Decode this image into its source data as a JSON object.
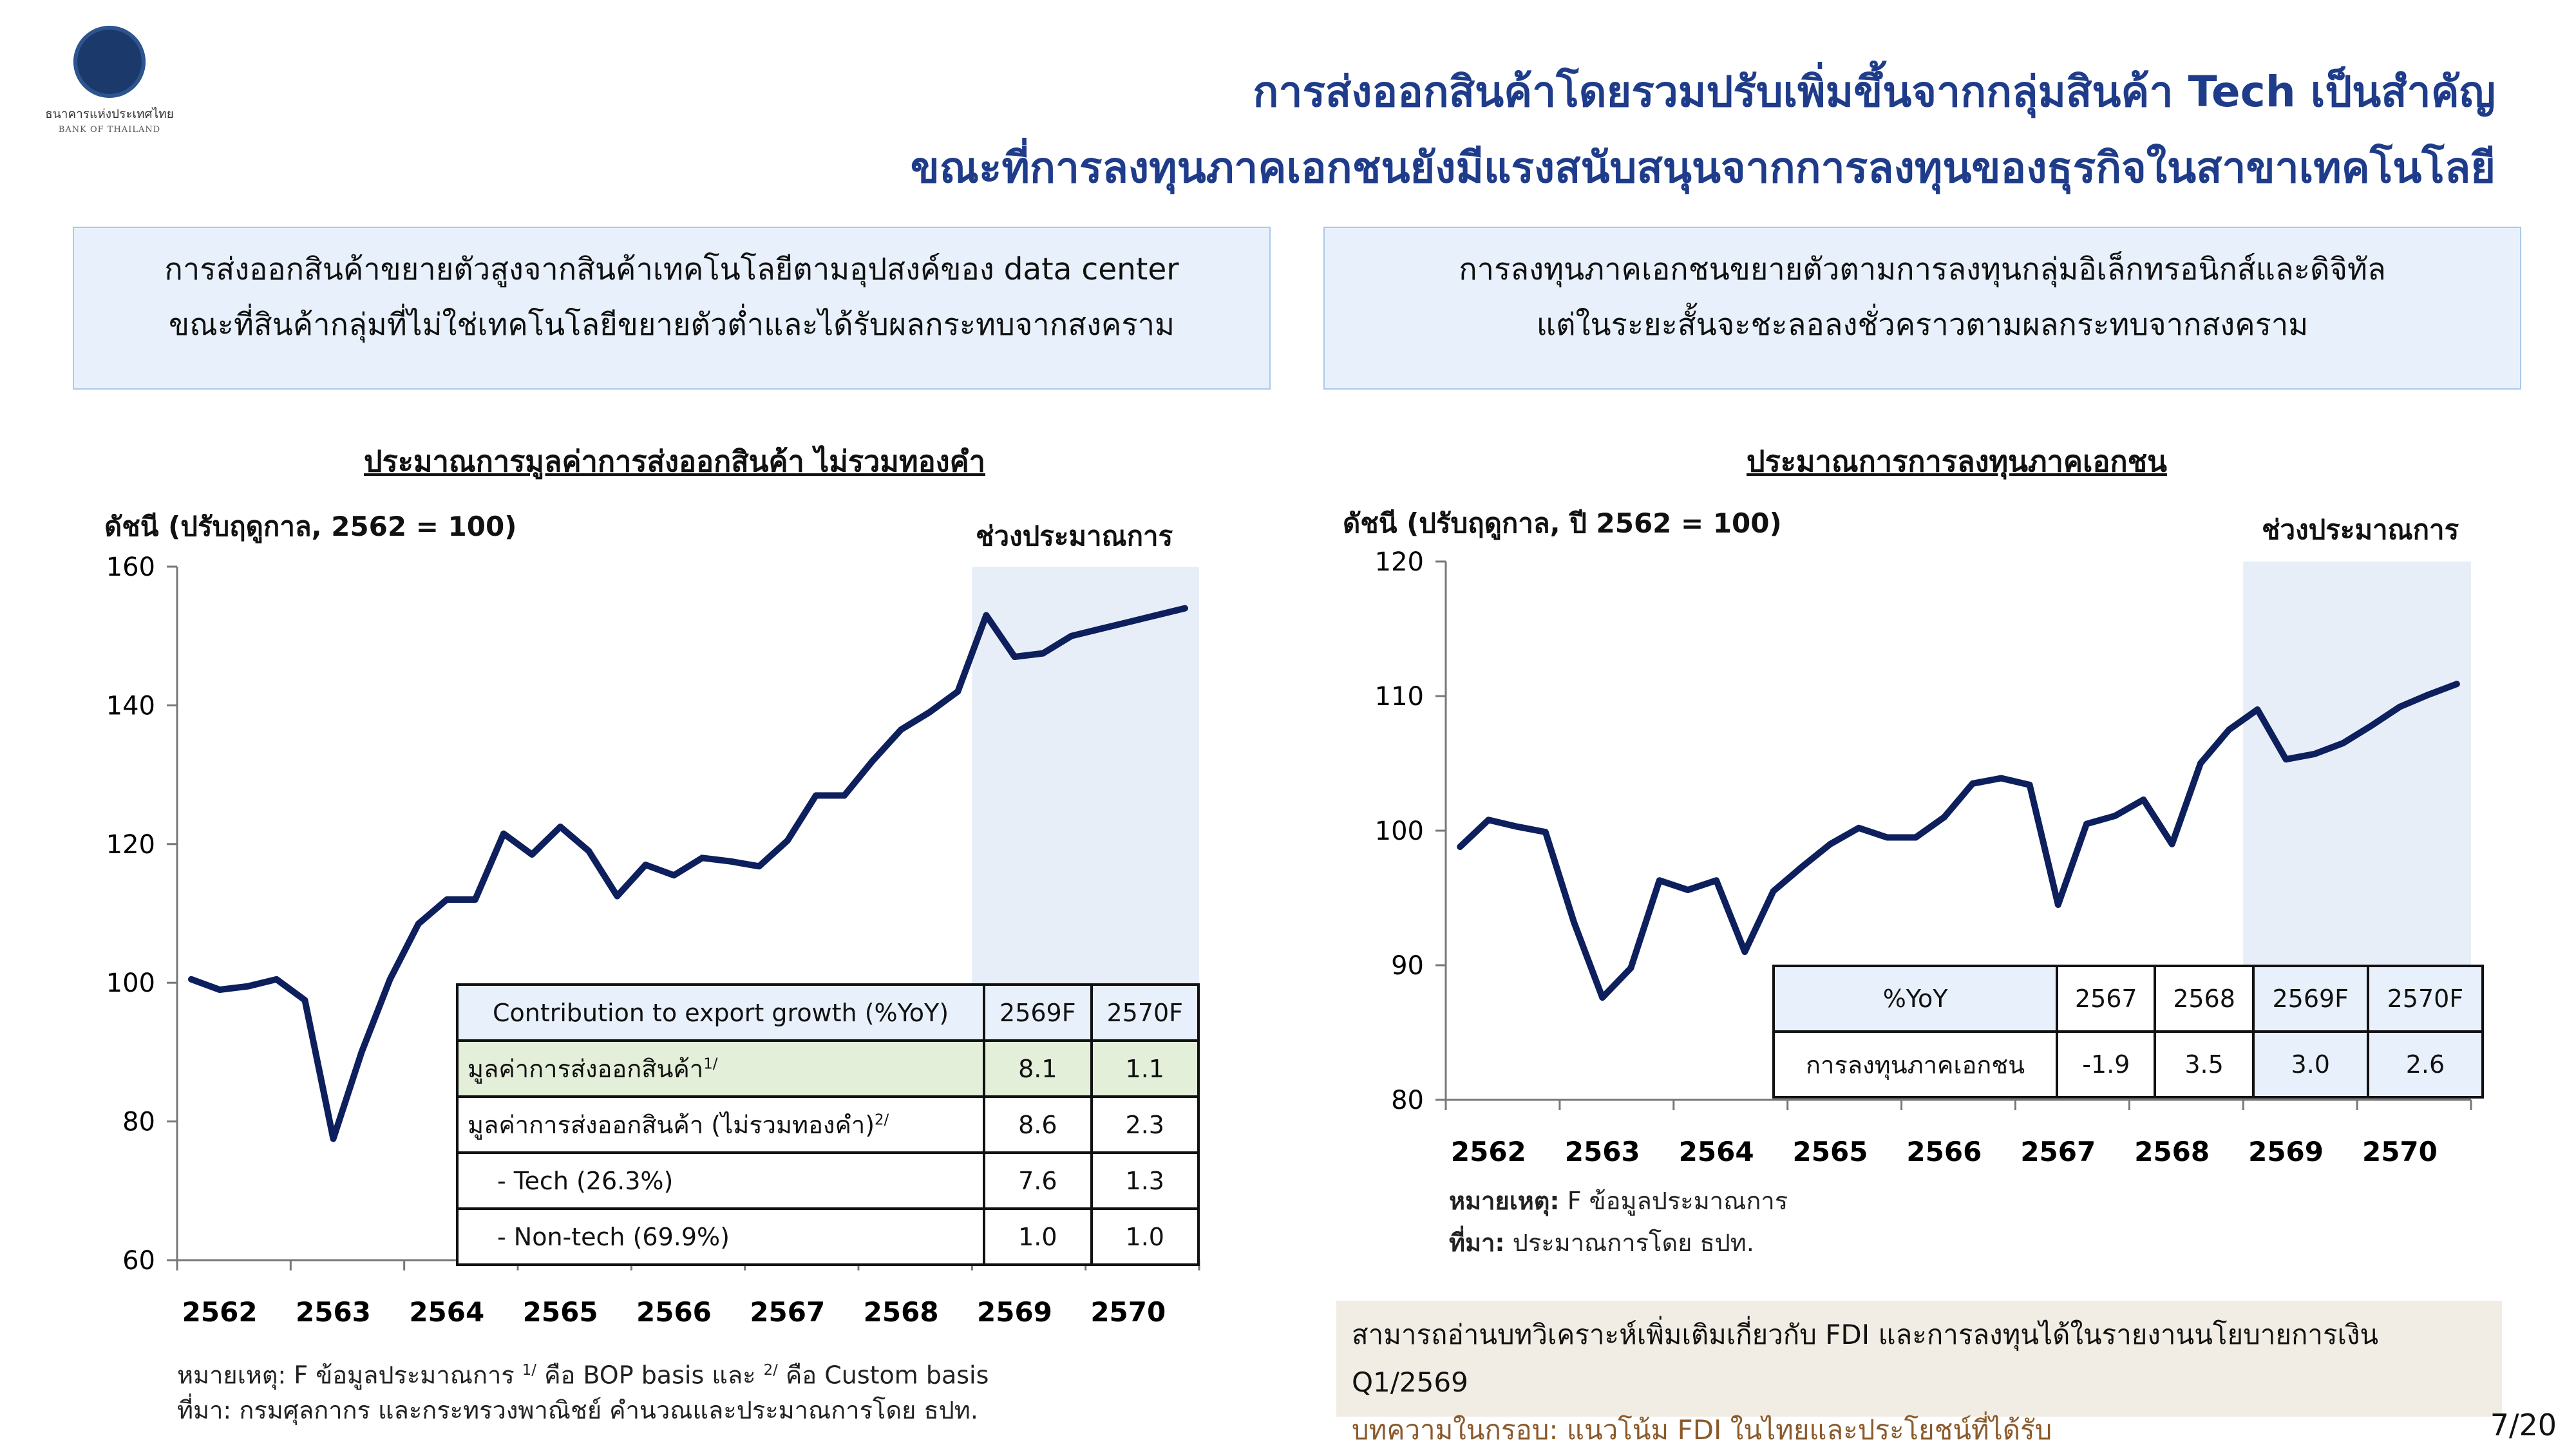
{
  "header": {
    "logo_th": "ธนาคารแห่งประเทศไทย",
    "logo_en": "BANK OF THAILAND",
    "title_line1": "การส่งออกสินค้าโดยรวมปรับเพิ่มขึ้นจากกลุ่มสินค้า Tech เป็นสำคัญ",
    "title_line2": "ขณะที่การลงทุนภาคเอกชนยังมีแรงสนับสนุนจากการลงทุนของธุรกิจในสาขาเทคโนโลยี",
    "title_color": "#1f3c8a"
  },
  "summary_left": {
    "line1": "การส่งออกสินค้าขยายตัวสูงจากสินค้าเทคโนโลยีตามอุปสงค์ของ data center",
    "line2": "ขณะที่สินค้ากลุ่มที่ไม่ใช่เทคโนโลยีขยายตัวต่ำและได้รับผลกระทบจากสงคราม"
  },
  "summary_right": {
    "line1": "การลงทุนภาคเอกชนขยายตัวตามการลงทุนกลุ่มอิเล็กทรอนิกส์และดิจิทัล",
    "line2": "แต่ในระยะสั้นจะชะลอลงชั่วคราวตามผลกระทบจากสงคราม"
  },
  "chart_data": [
    {
      "type": "line",
      "title": "ประมาณการมูลค่าการส่งออกสินค้า ไม่รวมทองคำ",
      "ylabel": "ดัชนี (ปรับฤดูกาล, 2562 = 100)",
      "forecast_label": "ช่วงประมาณการ",
      "ylim": [
        60,
        160
      ],
      "yticks": [
        "60",
        "80",
        "100",
        "120",
        "140",
        "160"
      ],
      "year_labels": [
        "2562",
        "2563",
        "2564",
        "2565",
        "2566",
        "2567",
        "2568",
        "2569",
        "2570"
      ],
      "forecast_start_quarter": 29,
      "line_color": "#0d1f5c",
      "shade_color": "#e8eef7",
      "series": [
        {
          "values": [
            100.5,
            99.0,
            99.5,
            100.5,
            97.5,
            77.5,
            90.0,
            100.5,
            108.5,
            112.0,
            112.0,
            121.5,
            118.5,
            122.5,
            119.0,
            112.5,
            117.0,
            115.5,
            118.0,
            117.5,
            116.8,
            120.5,
            127.0,
            127.0,
            132.0,
            136.5,
            139.0,
            142.0,
            153.0,
            147.0,
            147.5,
            150.0,
            151.0,
            152.0,
            153.0,
            154.0
          ]
        }
      ]
    },
    {
      "type": "line",
      "title": "ประมาณการการลงทุนภาคเอกชน",
      "ylabel": "ดัชนี (ปรับฤดูกาล, ปี 2562 = 100)",
      "forecast_label": "ช่วงประมาณการ",
      "ylim": [
        80,
        120
      ],
      "yticks": [
        "80",
        "90",
        "100",
        "110",
        "120"
      ],
      "year_labels": [
        "2562",
        "2563",
        "2564",
        "2565",
        "2566",
        "2567",
        "2568",
        "2569",
        "2570"
      ],
      "forecast_start_quarter": 29,
      "line_color": "#0d1f5c",
      "shade_color": "#e8eef7",
      "series": [
        {
          "values": [
            98.8,
            100.8,
            100.3,
            99.9,
            93.2,
            87.6,
            89.8,
            96.3,
            95.6,
            96.3,
            91.0,
            95.5,
            97.3,
            99.0,
            100.2,
            99.5,
            99.5,
            101.0,
            103.5,
            103.9,
            103.4,
            94.5,
            100.5,
            101.1,
            102.3,
            99.0,
            105.0,
            107.5,
            109.0,
            105.3,
            105.7,
            106.5,
            107.8,
            109.2,
            110.1,
            110.9
          ]
        }
      ]
    }
  ],
  "table_left": {
    "header": [
      "Contribution to export growth (%YoY)",
      "2569F",
      "2570F"
    ],
    "rows": [
      {
        "label": "มูลค่าการส่งออกสินค้า",
        "sup": "1/",
        "v1": "8.1",
        "v2": "1.1"
      },
      {
        "label": "มูลค่าการส่งออกสินค้า (ไม่รวมทองคำ)",
        "sup": "2/",
        "v1": "8.6",
        "v2": "2.3"
      },
      {
        "label": "- Tech (26.3%)",
        "sup": "",
        "v1": "7.6",
        "v2": "1.3"
      },
      {
        "label": "- Non-tech (69.9%)",
        "sup": "",
        "v1": "1.0",
        "v2": "1.0"
      }
    ],
    "highlight_color": "#e3efd9"
  },
  "table_right": {
    "header": [
      "%YoY",
      "2567",
      "2568",
      "2569F",
      "2570F"
    ],
    "row_label": "การลงทุนภาคเอกชน",
    "values": [
      "-1.9",
      "3.5",
      "3.0",
      "2.6"
    ]
  },
  "notes_left": {
    "note_prefix": "หมายเหตุ: F ข้อมูลประมาณการ ",
    "sup1": "1/",
    "note_mid": " คือ BOP basis และ ",
    "sup2": "2/",
    "note_end": " คือ Custom basis",
    "source": "ที่มา: กรมศุลกากร และกระทรวงพาณิชย์ คำนวณและประมาณการโดย ธปท."
  },
  "notes_right": {
    "note_label": "หมายเหตุ:",
    "note_text": " F ข้อมูลประมาณการ",
    "source_label": "ที่มา:",
    "source_text": " ประมาณการโดย ธปท."
  },
  "info_box": {
    "line1": "สามารถอ่านบทวิเคราะห์เพิ่มเติมเกี่ยวกับ FDI และการลงทุนได้ในรายงานนโยบายการเงิน Q1/2569",
    "line2": "บทความในกรอบ: แนวโน้ม FDI ในไทยและประโยชน์ที่ได้รับ"
  },
  "page_number": "7/20"
}
